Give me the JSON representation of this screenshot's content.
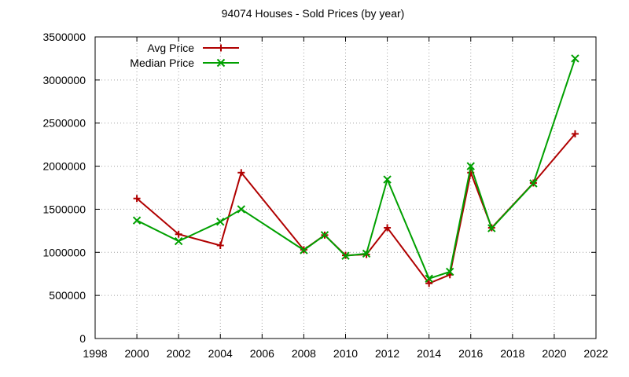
{
  "chart_data": {
    "type": "line",
    "title": "94074 Houses - Sold Prices (by year)",
    "xlabel": "",
    "ylabel": "",
    "xlim": [
      1998,
      2022
    ],
    "ylim": [
      0,
      3500000
    ],
    "x_ticks": [
      1998,
      2000,
      2002,
      2004,
      2006,
      2008,
      2010,
      2012,
      2014,
      2016,
      2018,
      2020,
      2022
    ],
    "y_ticks": [
      0,
      500000,
      1000000,
      1500000,
      2000000,
      2500000,
      3000000,
      3500000
    ],
    "grid": true,
    "legend_position": "top-left",
    "series": [
      {
        "name": "Avg Price",
        "color": "#b00000",
        "marker": "plus",
        "points": [
          [
            2000,
            1625000
          ],
          [
            2002,
            1210000
          ],
          [
            2004,
            1080000
          ],
          [
            2005,
            1925000
          ],
          [
            2008,
            1030000
          ],
          [
            2009,
            1200000
          ],
          [
            2010,
            965000
          ],
          [
            2011,
            975000
          ],
          [
            2012,
            1285000
          ],
          [
            2014,
            640000
          ],
          [
            2015,
            740000
          ],
          [
            2016,
            1925000
          ],
          [
            2017,
            1285000
          ],
          [
            2019,
            1805000
          ],
          [
            2021,
            2375000
          ]
        ]
      },
      {
        "name": "Median Price",
        "color": "#00a000",
        "marker": "cross",
        "points": [
          [
            2000,
            1370000
          ],
          [
            2002,
            1130000
          ],
          [
            2004,
            1355000
          ],
          [
            2005,
            1500000
          ],
          [
            2008,
            1025000
          ],
          [
            2009,
            1200000
          ],
          [
            2010,
            960000
          ],
          [
            2011,
            985000
          ],
          [
            2012,
            1845000
          ],
          [
            2014,
            695000
          ],
          [
            2015,
            775000
          ],
          [
            2016,
            2000000
          ],
          [
            2017,
            1280000
          ],
          [
            2019,
            1800000
          ],
          [
            2021,
            3250000
          ]
        ]
      }
    ]
  }
}
